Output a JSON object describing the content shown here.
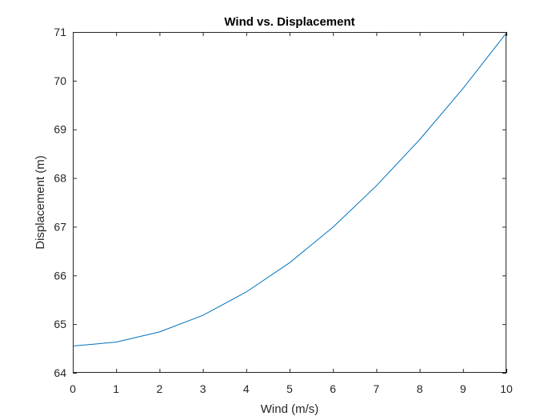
{
  "chart_data": {
    "type": "line",
    "title": "Wind vs. Displacement",
    "xlabel": "Wind (m/s)",
    "ylabel": "Displacement (m)",
    "xlim": [
      0,
      10
    ],
    "ylim": [
      64,
      71
    ],
    "x_ticks": [
      0,
      1,
      2,
      3,
      4,
      5,
      6,
      7,
      8,
      9,
      10
    ],
    "y_ticks": [
      64,
      65,
      66,
      67,
      68,
      69,
      70,
      71
    ],
    "grid": false,
    "box": true,
    "series": [
      {
        "color": "#0072BD",
        "x": [
          0,
          1,
          2,
          3,
          4,
          5,
          6,
          7,
          8,
          9,
          10
        ],
        "y": [
          64.55,
          64.63,
          64.84,
          65.18,
          65.66,
          66.26,
          66.99,
          67.84,
          68.79,
          69.84,
          70.98
        ]
      }
    ]
  }
}
